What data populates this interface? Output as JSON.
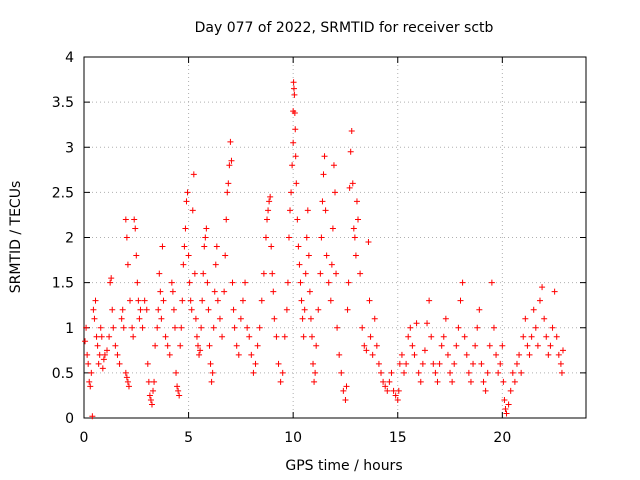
{
  "chart_data": {
    "type": "scatter",
    "title": "Day 077 of 2022, SRMTID for receiver sctb",
    "xlabel": "GPS time / hours",
    "ylabel": "SRMTID / TECUs",
    "xlim": [
      0,
      24
    ],
    "ylim": [
      0,
      4
    ],
    "xticks": [
      0,
      5,
      10,
      15,
      20
    ],
    "xtick_labels": [
      "0",
      "5",
      "10",
      "15",
      "20"
    ],
    "yticks": [
      0,
      0.5,
      1,
      1.5,
      2,
      2.5,
      3,
      3.5,
      4
    ],
    "ytick_labels": [
      "0",
      "0.5",
      "1",
      "1.5",
      "2",
      "2.5",
      "3",
      "3.5",
      "4"
    ],
    "grid": true,
    "marker": "+",
    "color": "#ff0000",
    "series": [
      {
        "name": "SRMTID",
        "points": [
          [
            0.05,
            0.85
          ],
          [
            0.1,
            1.0
          ],
          [
            0.15,
            0.7
          ],
          [
            0.2,
            0.6
          ],
          [
            0.25,
            0.4
          ],
          [
            0.3,
            0.35
          ],
          [
            0.35,
            0.5
          ],
          [
            0.4,
            0.02
          ],
          [
            0.45,
            1.2
          ],
          [
            0.5,
            1.1
          ],
          [
            0.55,
            1.3
          ],
          [
            0.6,
            0.9
          ],
          [
            0.65,
            0.8
          ],
          [
            0.7,
            0.6
          ],
          [
            0.75,
            0.7
          ],
          [
            0.8,
            1.0
          ],
          [
            0.85,
            0.9
          ],
          [
            0.9,
            0.55
          ],
          [
            0.95,
            0.65
          ],
          [
            1.0,
            0.7
          ],
          [
            1.1,
            0.75
          ],
          [
            1.2,
            0.9
          ],
          [
            1.25,
            1.5
          ],
          [
            1.3,
            1.55
          ],
          [
            1.35,
            1.2
          ],
          [
            1.4,
            1.0
          ],
          [
            1.5,
            0.8
          ],
          [
            1.6,
            0.7
          ],
          [
            1.7,
            0.6
          ],
          [
            1.8,
            1.1
          ],
          [
            1.85,
            1.2
          ],
          [
            1.9,
            1.0
          ],
          [
            2.0,
            0.5
          ],
          [
            2.05,
            0.45
          ],
          [
            2.1,
            0.4
          ],
          [
            2.15,
            0.35
          ],
          [
            2.0,
            2.2
          ],
          [
            2.05,
            2.0
          ],
          [
            2.1,
            1.7
          ],
          [
            2.2,
            1.3
          ],
          [
            2.3,
            1.0
          ],
          [
            2.35,
            0.9
          ],
          [
            2.4,
            2.2
          ],
          [
            2.45,
            2.1
          ],
          [
            2.5,
            1.8
          ],
          [
            2.55,
            1.5
          ],
          [
            2.6,
            1.3
          ],
          [
            2.65,
            1.1
          ],
          [
            2.7,
            1.2
          ],
          [
            2.8,
            1.0
          ],
          [
            2.9,
            1.3
          ],
          [
            3.0,
            1.2
          ],
          [
            3.05,
            0.6
          ],
          [
            3.1,
            0.4
          ],
          [
            3.15,
            0.25
          ],
          [
            3.2,
            0.2
          ],
          [
            3.25,
            0.15
          ],
          [
            3.3,
            0.3
          ],
          [
            3.35,
            0.4
          ],
          [
            3.4,
            0.8
          ],
          [
            3.5,
            1.0
          ],
          [
            3.55,
            1.2
          ],
          [
            3.6,
            1.6
          ],
          [
            3.65,
            1.4
          ],
          [
            3.7,
            1.1
          ],
          [
            3.75,
            1.9
          ],
          [
            3.8,
            1.3
          ],
          [
            3.9,
            0.9
          ],
          [
            4.0,
            0.8
          ],
          [
            4.1,
            0.7
          ],
          [
            4.2,
            1.5
          ],
          [
            4.25,
            1.4
          ],
          [
            4.3,
            1.2
          ],
          [
            4.35,
            1.0
          ],
          [
            4.4,
            0.5
          ],
          [
            4.45,
            0.35
          ],
          [
            4.5,
            0.3
          ],
          [
            4.55,
            0.25
          ],
          [
            4.6,
            0.8
          ],
          [
            4.65,
            1.0
          ],
          [
            4.7,
            1.3
          ],
          [
            4.75,
            1.7
          ],
          [
            4.8,
            1.9
          ],
          [
            4.85,
            2.1
          ],
          [
            4.9,
            2.4
          ],
          [
            4.95,
            2.5
          ],
          [
            5.0,
            1.8
          ],
          [
            5.05,
            1.5
          ],
          [
            5.1,
            1.3
          ],
          [
            5.15,
            1.2
          ],
          [
            5.2,
            2.3
          ],
          [
            5.25,
            2.7
          ],
          [
            5.3,
            1.6
          ],
          [
            5.35,
            1.1
          ],
          [
            5.4,
            0.9
          ],
          [
            5.45,
            0.8
          ],
          [
            5.5,
            0.7
          ],
          [
            5.55,
            0.75
          ],
          [
            5.6,
            1.0
          ],
          [
            5.65,
            1.3
          ],
          [
            5.7,
            1.6
          ],
          [
            5.75,
            1.9
          ],
          [
            5.8,
            2.0
          ],
          [
            5.85,
            2.1
          ],
          [
            5.9,
            1.5
          ],
          [
            5.95,
            1.2
          ],
          [
            6.0,
            0.8
          ],
          [
            6.05,
            0.6
          ],
          [
            6.1,
            0.4
          ],
          [
            6.15,
            0.5
          ],
          [
            6.2,
            1.0
          ],
          [
            6.25,
            1.4
          ],
          [
            6.3,
            1.7
          ],
          [
            6.35,
            1.9
          ],
          [
            6.4,
            1.3
          ],
          [
            6.5,
            1.1
          ],
          [
            6.6,
            0.9
          ],
          [
            6.7,
            1.4
          ],
          [
            6.75,
            1.8
          ],
          [
            6.8,
            2.2
          ],
          [
            6.85,
            2.5
          ],
          [
            6.9,
            2.6
          ],
          [
            6.95,
            2.8
          ],
          [
            7.0,
            3.06
          ],
          [
            7.05,
            2.85
          ],
          [
            7.1,
            1.5
          ],
          [
            7.15,
            1.2
          ],
          [
            7.2,
            1.0
          ],
          [
            7.3,
            0.8
          ],
          [
            7.4,
            0.7
          ],
          [
            7.5,
            1.1
          ],
          [
            7.6,
            1.3
          ],
          [
            7.7,
            1.5
          ],
          [
            7.8,
            1.0
          ],
          [
            7.9,
            0.9
          ],
          [
            8.0,
            0.7
          ],
          [
            8.1,
            0.5
          ],
          [
            8.2,
            0.6
          ],
          [
            8.3,
            0.8
          ],
          [
            8.4,
            1.0
          ],
          [
            8.5,
            1.3
          ],
          [
            8.6,
            1.6
          ],
          [
            8.7,
            2.0
          ],
          [
            8.75,
            2.2
          ],
          [
            8.8,
            2.3
          ],
          [
            8.85,
            2.4
          ],
          [
            8.9,
            2.45
          ],
          [
            8.95,
            1.9
          ],
          [
            9.0,
            1.6
          ],
          [
            9.05,
            1.4
          ],
          [
            9.1,
            1.1
          ],
          [
            9.2,
            0.9
          ],
          [
            9.3,
            0.6
          ],
          [
            9.4,
            0.4
          ],
          [
            9.5,
            0.5
          ],
          [
            9.6,
            0.9
          ],
          [
            9.7,
            1.2
          ],
          [
            9.75,
            1.5
          ],
          [
            9.8,
            2.0
          ],
          [
            9.85,
            2.3
          ],
          [
            9.9,
            2.5
          ],
          [
            9.95,
            2.8
          ],
          [
            10.0,
            3.05
          ],
          [
            10.0,
            3.4
          ],
          [
            10.02,
            3.72
          ],
          [
            10.04,
            3.65
          ],
          [
            10.06,
            3.58
          ],
          [
            10.08,
            3.38
          ],
          [
            10.1,
            3.2
          ],
          [
            10.12,
            2.9
          ],
          [
            10.15,
            2.6
          ],
          [
            10.2,
            2.2
          ],
          [
            10.25,
            1.9
          ],
          [
            10.3,
            1.7
          ],
          [
            10.35,
            1.5
          ],
          [
            10.4,
            1.3
          ],
          [
            10.45,
            1.1
          ],
          [
            10.5,
            0.9
          ],
          [
            10.55,
            1.2
          ],
          [
            10.6,
            1.6
          ],
          [
            10.65,
            2.0
          ],
          [
            10.7,
            2.3
          ],
          [
            10.75,
            1.8
          ],
          [
            10.8,
            1.4
          ],
          [
            10.85,
            1.1
          ],
          [
            10.9,
            0.9
          ],
          [
            10.95,
            0.6
          ],
          [
            11.0,
            0.4
          ],
          [
            11.05,
            0.5
          ],
          [
            11.1,
            0.8
          ],
          [
            11.2,
            1.2
          ],
          [
            11.3,
            1.6
          ],
          [
            11.35,
            2.0
          ],
          [
            11.4,
            2.4
          ],
          [
            11.45,
            2.7
          ],
          [
            11.5,
            2.9
          ],
          [
            11.55,
            2.3
          ],
          [
            11.6,
            1.8
          ],
          [
            11.7,
            1.5
          ],
          [
            11.8,
            1.3
          ],
          [
            11.85,
            1.7
          ],
          [
            11.9,
            2.1
          ],
          [
            11.95,
            2.8
          ],
          [
            12.0,
            2.5
          ],
          [
            12.05,
            1.6
          ],
          [
            12.1,
            1.0
          ],
          [
            12.2,
            0.7
          ],
          [
            12.3,
            0.5
          ],
          [
            12.4,
            0.3
          ],
          [
            12.5,
            0.2
          ],
          [
            12.55,
            0.35
          ],
          [
            12.6,
            1.2
          ],
          [
            12.65,
            1.5
          ],
          [
            12.7,
            2.55
          ],
          [
            12.75,
            2.95
          ],
          [
            12.8,
            3.18
          ],
          [
            12.85,
            2.6
          ],
          [
            12.9,
            2.1
          ],
          [
            12.95,
            2.0
          ],
          [
            13.0,
            1.8
          ],
          [
            13.05,
            2.4
          ],
          [
            13.1,
            2.2
          ],
          [
            13.2,
            1.6
          ],
          [
            13.3,
            1.0
          ],
          [
            13.4,
            0.8
          ],
          [
            13.5,
            0.75
          ],
          [
            13.6,
            1.95
          ],
          [
            13.65,
            1.3
          ],
          [
            13.7,
            0.9
          ],
          [
            13.8,
            0.7
          ],
          [
            13.9,
            1.1
          ],
          [
            14.0,
            0.8
          ],
          [
            14.1,
            0.6
          ],
          [
            14.2,
            0.5
          ],
          [
            14.3,
            0.4
          ],
          [
            14.4,
            0.35
          ],
          [
            14.5,
            0.3
          ],
          [
            14.6,
            0.4
          ],
          [
            14.7,
            0.5
          ],
          [
            14.8,
            0.3
          ],
          [
            14.9,
            0.25
          ],
          [
            15.0,
            0.2
          ],
          [
            15.05,
            0.3
          ],
          [
            15.1,
            0.6
          ],
          [
            15.2,
            0.7
          ],
          [
            15.3,
            0.5
          ],
          [
            15.4,
            0.6
          ],
          [
            15.5,
            0.9
          ],
          [
            15.6,
            1.0
          ],
          [
            15.7,
            0.8
          ],
          [
            15.8,
            0.7
          ],
          [
            15.9,
            1.05
          ],
          [
            16.0,
            0.5
          ],
          [
            16.1,
            0.4
          ],
          [
            16.2,
            0.6
          ],
          [
            16.3,
            0.75
          ],
          [
            16.4,
            1.05
          ],
          [
            16.5,
            1.3
          ],
          [
            16.6,
            0.9
          ],
          [
            16.7,
            0.6
          ],
          [
            16.8,
            0.5
          ],
          [
            16.9,
            0.4
          ],
          [
            17.0,
            0.6
          ],
          [
            17.1,
            0.8
          ],
          [
            17.2,
            0.9
          ],
          [
            17.3,
            1.1
          ],
          [
            17.4,
            0.7
          ],
          [
            17.5,
            0.5
          ],
          [
            17.6,
            0.4
          ],
          [
            17.7,
            0.6
          ],
          [
            17.8,
            0.8
          ],
          [
            17.9,
            1.0
          ],
          [
            18.0,
            1.3
          ],
          [
            18.1,
            1.5
          ],
          [
            18.2,
            0.9
          ],
          [
            18.3,
            0.7
          ],
          [
            18.4,
            0.5
          ],
          [
            18.5,
            0.4
          ],
          [
            18.6,
            0.6
          ],
          [
            18.7,
            0.8
          ],
          [
            18.8,
            1.0
          ],
          [
            18.9,
            1.2
          ],
          [
            19.0,
            0.6
          ],
          [
            19.1,
            0.4
          ],
          [
            19.2,
            0.3
          ],
          [
            19.3,
            0.5
          ],
          [
            19.4,
            0.8
          ],
          [
            19.5,
            1.5
          ],
          [
            19.6,
            1.0
          ],
          [
            19.7,
            0.7
          ],
          [
            19.8,
            0.5
          ],
          [
            19.9,
            0.6
          ],
          [
            20.0,
            0.8
          ],
          [
            20.05,
            0.4
          ],
          [
            20.1,
            0.2
          ],
          [
            20.15,
            0.1
          ],
          [
            20.2,
            0.05
          ],
          [
            20.3,
            0.15
          ],
          [
            20.4,
            0.3
          ],
          [
            20.5,
            0.5
          ],
          [
            20.6,
            0.4
          ],
          [
            20.7,
            0.6
          ],
          [
            20.8,
            0.7
          ],
          [
            20.9,
            0.5
          ],
          [
            21.0,
            0.9
          ],
          [
            21.1,
            1.1
          ],
          [
            21.2,
            0.8
          ],
          [
            21.3,
            0.7
          ],
          [
            21.4,
            0.9
          ],
          [
            21.5,
            1.2
          ],
          [
            21.6,
            1.0
          ],
          [
            21.7,
            0.8
          ],
          [
            21.8,
            1.3
          ],
          [
            21.9,
            1.45
          ],
          [
            22.0,
            1.1
          ],
          [
            22.1,
            0.9
          ],
          [
            22.2,
            0.7
          ],
          [
            22.3,
            0.8
          ],
          [
            22.4,
            1.0
          ],
          [
            22.5,
            1.4
          ],
          [
            22.6,
            0.9
          ],
          [
            22.7,
            0.7
          ],
          [
            22.8,
            0.6
          ],
          [
            22.85,
            0.5
          ],
          [
            22.9,
            0.75
          ]
        ]
      }
    ]
  }
}
